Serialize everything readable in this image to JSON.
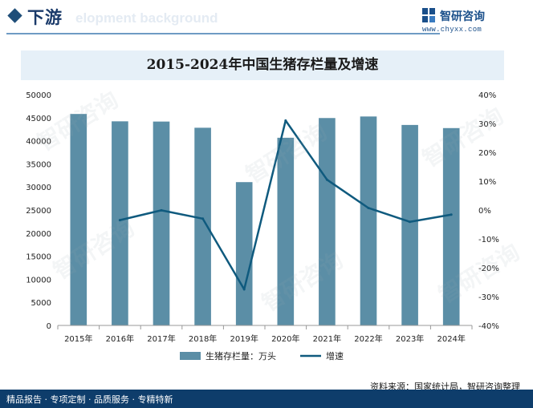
{
  "header": {
    "section_title": "下游",
    "section_subtitle": "elopment background",
    "logo_name": "智研咨询",
    "logo_url": "www.chyxx.com"
  },
  "watermark": "智研咨询",
  "footer": {
    "left_text": "精品报告 · 专项定制 · 品质服务 · 专精特新",
    "source_text": "资料来源：国家统计局，智研咨询整理"
  },
  "colors": {
    "bar": "#5b8ea6",
    "line": "#0f5a7e",
    "title_band": "#e6f0f8",
    "footer": "#0e3d6b"
  },
  "chart_data": {
    "type": "bar",
    "title": "2015-2024年中国生猪存栏量及增速",
    "categories": [
      "2015年",
      "2016年",
      "2017年",
      "2018年",
      "2019年",
      "2020年",
      "2021年",
      "2022年",
      "2023年",
      "2024年"
    ],
    "series": [
      {
        "name": "生猪存栏量：万头",
        "type": "bar",
        "axis": "left",
        "values": [
          45803,
          44209,
          44159,
          42817,
          31041,
          40650,
          44922,
          45256,
          43422,
          42743
        ]
      },
      {
        "name": "增速",
        "type": "line",
        "axis": "right",
        "values": [
          null,
          -3.5,
          -0.1,
          -3.0,
          -27.5,
          31.0,
          10.5,
          0.7,
          -4.1,
          -1.6
        ]
      }
    ],
    "y_left": {
      "min": 0,
      "max": 50000,
      "step": 5000,
      "ticks": [
        "0",
        "5000",
        "10000",
        "15000",
        "20000",
        "25000",
        "30000",
        "35000",
        "40000",
        "45000",
        "50000"
      ]
    },
    "y_right": {
      "min": -40,
      "max": 40,
      "step": 10,
      "ticks": [
        "-40%",
        "-30%",
        "-20%",
        "-10%",
        "0%",
        "10%",
        "20%",
        "30%",
        "40%"
      ]
    },
    "legend_position": "bottom-center",
    "grid": false
  }
}
